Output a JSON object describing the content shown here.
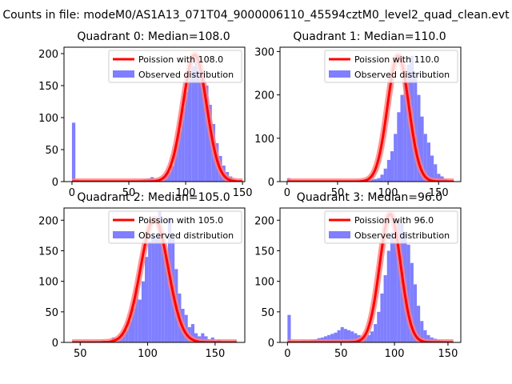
{
  "figure": {
    "suptitle": "Counts in file: modeM0/AS1A13_071T04_9000006110_45594cztM0_level2_quad_clean.evt"
  },
  "colors": {
    "histogram": "#7f7fff",
    "curve": "#ff0000",
    "curve_light": "#ff8080"
  },
  "chart_data": [
    {
      "type": "bar",
      "title": "Quadrant 0: Median=108.0",
      "xlim": [
        -7,
        152
      ],
      "ylim": [
        0,
        210
      ],
      "xticks": [
        0,
        50,
        100,
        150
      ],
      "yticks": [
        0,
        50,
        100,
        150,
        200
      ],
      "legend": [
        "Poission with 108.0",
        "Observed distribution"
      ],
      "legend_position": "upper-right",
      "curve_peak": 198,
      "curve_center": 108,
      "curve_sigma": 10.4,
      "curve_x_range": [
        0,
        150
      ],
      "bin_width": 3,
      "bins_x": [
        0,
        3,
        6,
        9,
        12,
        15,
        18,
        21,
        24,
        27,
        30,
        33,
        36,
        39,
        42,
        45,
        48,
        51,
        54,
        57,
        60,
        63,
        66,
        69,
        72,
        75,
        78,
        81,
        84,
        87,
        90,
        93,
        96,
        99,
        102,
        105,
        108,
        111,
        114,
        117,
        120,
        123,
        126,
        129,
        132,
        135,
        138,
        141,
        144,
        147
      ],
      "counts": [
        92,
        3,
        1,
        1,
        1,
        1,
        1,
        1,
        1,
        1,
        1,
        1,
        1,
        1,
        1,
        1,
        1,
        1,
        2,
        2,
        3,
        4,
        5,
        7,
        4,
        3,
        6,
        10,
        15,
        25,
        55,
        80,
        115,
        140,
        162,
        180,
        195,
        190,
        175,
        150,
        120,
        90,
        60,
        40,
        25,
        15,
        8,
        4,
        2,
        1
      ]
    },
    {
      "type": "bar",
      "title": "Quadrant 1: Median=110.0",
      "xlim": [
        -7,
        172
      ],
      "ylim": [
        0,
        310
      ],
      "xticks": [
        0,
        50,
        100,
        150
      ],
      "yticks": [
        0,
        100,
        200,
        300
      ],
      "legend": [
        "Poission with 110.0",
        "Observed distribution"
      ],
      "legend_position": "upper-right",
      "curve_peak": 290,
      "curve_center": 110,
      "curve_sigma": 10.5,
      "curve_x_range": [
        0,
        165
      ],
      "bin_width": 3.3,
      "bins_x": [
        0,
        3.3,
        6.6,
        9.9,
        13.2,
        16.5,
        19.8,
        23.1,
        26.4,
        29.7,
        33,
        36.3,
        39.6,
        42.9,
        46.2,
        49.5,
        52.8,
        56.1,
        59.4,
        62.7,
        66,
        69.3,
        72.6,
        75.9,
        79.2,
        82.5,
        85.8,
        89.1,
        92.4,
        95.7,
        99,
        102.3,
        105.6,
        108.9,
        112.2,
        115.5,
        118.8,
        122.1,
        125.4,
        128.7,
        132,
        135.3,
        138.6,
        141.9,
        145.2,
        148.5,
        151.8,
        155.1,
        158.4,
        161.7
      ],
      "counts": [
        8,
        1,
        1,
        1,
        1,
        1,
        1,
        1,
        1,
        1,
        1,
        1,
        1,
        1,
        1,
        1,
        1,
        1,
        1,
        1,
        1,
        1,
        5,
        5,
        5,
        5,
        6,
        8,
        16,
        30,
        50,
        70,
        110,
        160,
        200,
        240,
        270,
        290,
        250,
        200,
        150,
        110,
        90,
        60,
        40,
        18,
        12,
        6,
        3,
        2
      ]
    },
    {
      "type": "bar",
      "title": "Quadrant 2: Median=105.0",
      "xlim": [
        38,
        172
      ],
      "ylim": [
        0,
        220
      ],
      "xticks": [
        50,
        100,
        150
      ],
      "yticks": [
        0,
        50,
        100,
        150,
        200
      ],
      "legend": [
        "Poission with 105.0",
        "Observed distribution"
      ],
      "legend_position": "upper-right",
      "curve_peak": 202,
      "curve_center": 105,
      "curve_sigma": 10.2,
      "curve_x_range": [
        44,
        166
      ],
      "bin_width": 2.45,
      "bins_x": [
        44,
        46.45,
        48.9,
        51.35,
        53.8,
        56.25,
        58.7,
        61.15,
        63.6,
        66.05,
        68.5,
        70.95,
        73.4,
        75.85,
        78.3,
        80.75,
        83.2,
        85.65,
        88.1,
        90.55,
        93,
        95.45,
        97.9,
        100.35,
        102.8,
        105.25,
        107.7,
        110.15,
        112.6,
        115.05,
        117.5,
        119.95,
        122.4,
        124.85,
        127.3,
        129.75,
        132.2,
        134.65,
        137.1,
        139.55,
        142,
        144.45,
        146.9,
        149.35,
        151.8,
        154.25,
        156.7,
        159.15,
        161.6,
        164.05
      ],
      "counts": [
        1,
        1,
        1,
        1,
        1,
        1,
        1,
        2,
        1,
        3,
        2,
        3,
        8,
        5,
        8,
        15,
        20,
        35,
        55,
        90,
        70,
        100,
        140,
        165,
        175,
        170,
        215,
        165,
        140,
        205,
        170,
        120,
        80,
        55,
        45,
        25,
        30,
        15,
        10,
        15,
        10,
        5,
        8,
        3,
        4,
        2,
        1,
        1,
        1,
        1
      ]
    },
    {
      "type": "bar",
      "title": "Quadrant 3: Median=96.0",
      "xlim": [
        -7,
        162
      ],
      "ylim": [
        0,
        220
      ],
      "xticks": [
        0,
        50,
        100,
        150
      ],
      "yticks": [
        0,
        50,
        100,
        150,
        200
      ],
      "legend": [
        "Poission with 96.0",
        "Observed distribution"
      ],
      "legend_position": "upper-right",
      "curve_peak": 210,
      "curve_center": 96,
      "curve_sigma": 9.8,
      "curve_x_range": [
        0,
        155
      ],
      "bin_width": 3.1,
      "bins_x": [
        0,
        3.1,
        6.2,
        9.3,
        12.4,
        15.5,
        18.6,
        21.7,
        24.8,
        27.9,
        31,
        34.1,
        37.2,
        40.3,
        43.4,
        46.5,
        49.6,
        52.7,
        55.8,
        58.9,
        62,
        65.1,
        68.2,
        71.3,
        74.4,
        77.5,
        80.6,
        83.7,
        86.8,
        89.9,
        93,
        96.1,
        99.2,
        102.3,
        105.4,
        108.5,
        111.6,
        114.7,
        117.8,
        120.9,
        124,
        127.1,
        130.2,
        133.3,
        136.4,
        139.5,
        142.6,
        145.7,
        148.8,
        151.9
      ],
      "counts": [
        45,
        1,
        2,
        2,
        3,
        3,
        3,
        4,
        5,
        7,
        8,
        10,
        12,
        14,
        16,
        20,
        25,
        22,
        20,
        18,
        15,
        12,
        10,
        10,
        12,
        18,
        30,
        50,
        80,
        110,
        150,
        180,
        190,
        200,
        195,
        180,
        160,
        130,
        95,
        60,
        35,
        20,
        12,
        8,
        6,
        4,
        3,
        2,
        1,
        1
      ]
    }
  ]
}
